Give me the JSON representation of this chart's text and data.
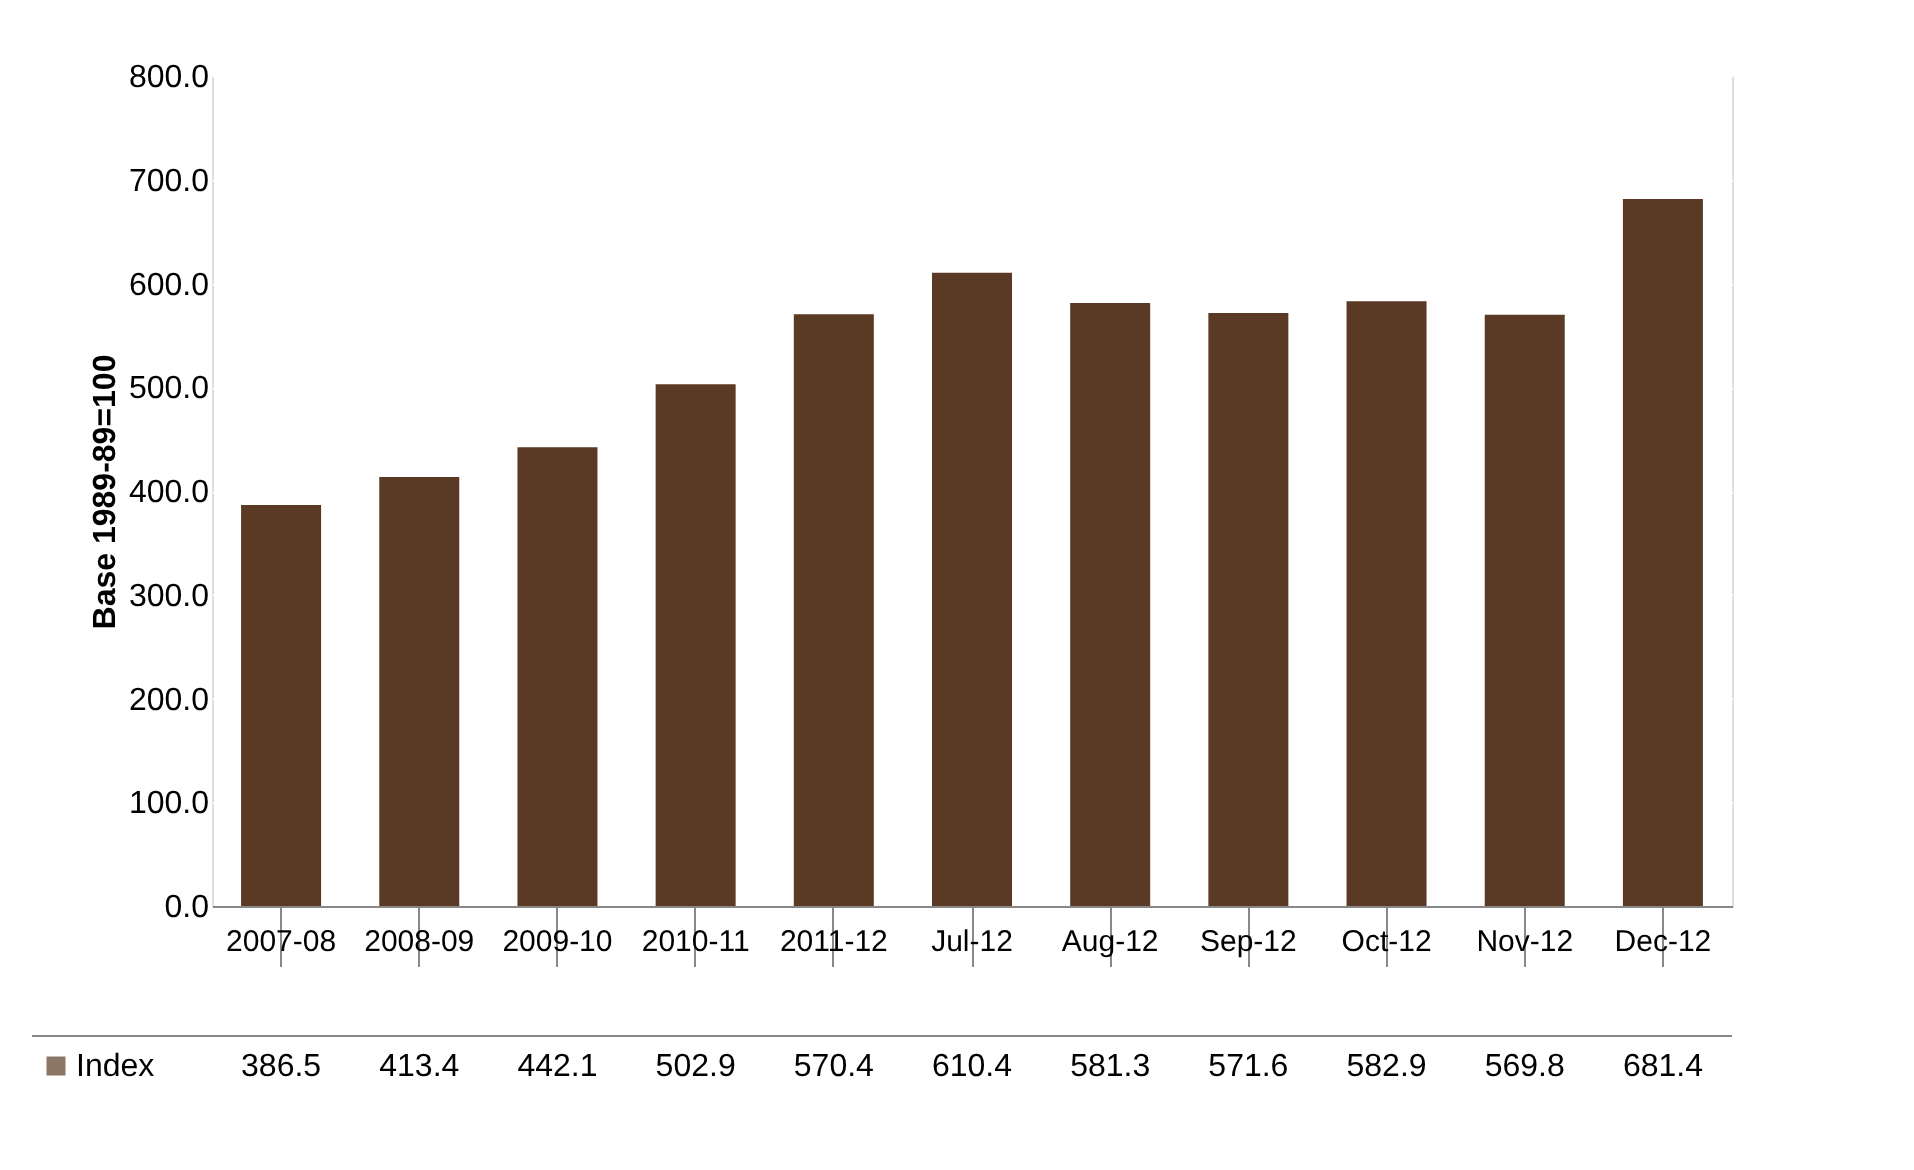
{
  "chart_data": {
    "type": "bar",
    "ylabel": "Base 1989-89=100",
    "categories": [
      "2007-08",
      "2008-09",
      "2009-10",
      "2010-11",
      "2011-12",
      "Jul-12",
      "Aug-12",
      "Sep-12",
      "Oct-12",
      "Nov-12",
      "Dec-12"
    ],
    "series": [
      {
        "name": "Index",
        "color": "#5a3a24",
        "values": [
          386.5,
          413.4,
          442.1,
          502.9,
          570.4,
          610.4,
          581.3,
          571.6,
          582.9,
          569.8,
          681.4
        ]
      }
    ],
    "ylim": [
      0,
      800
    ],
    "yticks": [
      {
        "value": 0,
        "label": "0.0"
      },
      {
        "value": 100,
        "label": "100.0"
      },
      {
        "value": 200,
        "label": "200.0"
      },
      {
        "value": 300,
        "label": "300.0"
      },
      {
        "value": 400,
        "label": "400.0"
      },
      {
        "value": 500,
        "label": "500.0"
      },
      {
        "value": 600,
        "label": "600.0"
      },
      {
        "value": 700,
        "label": "700.0"
      },
      {
        "value": 800,
        "label": "800.0"
      }
    ],
    "grid": "y",
    "data_labels": true,
    "legend": "bottom"
  }
}
